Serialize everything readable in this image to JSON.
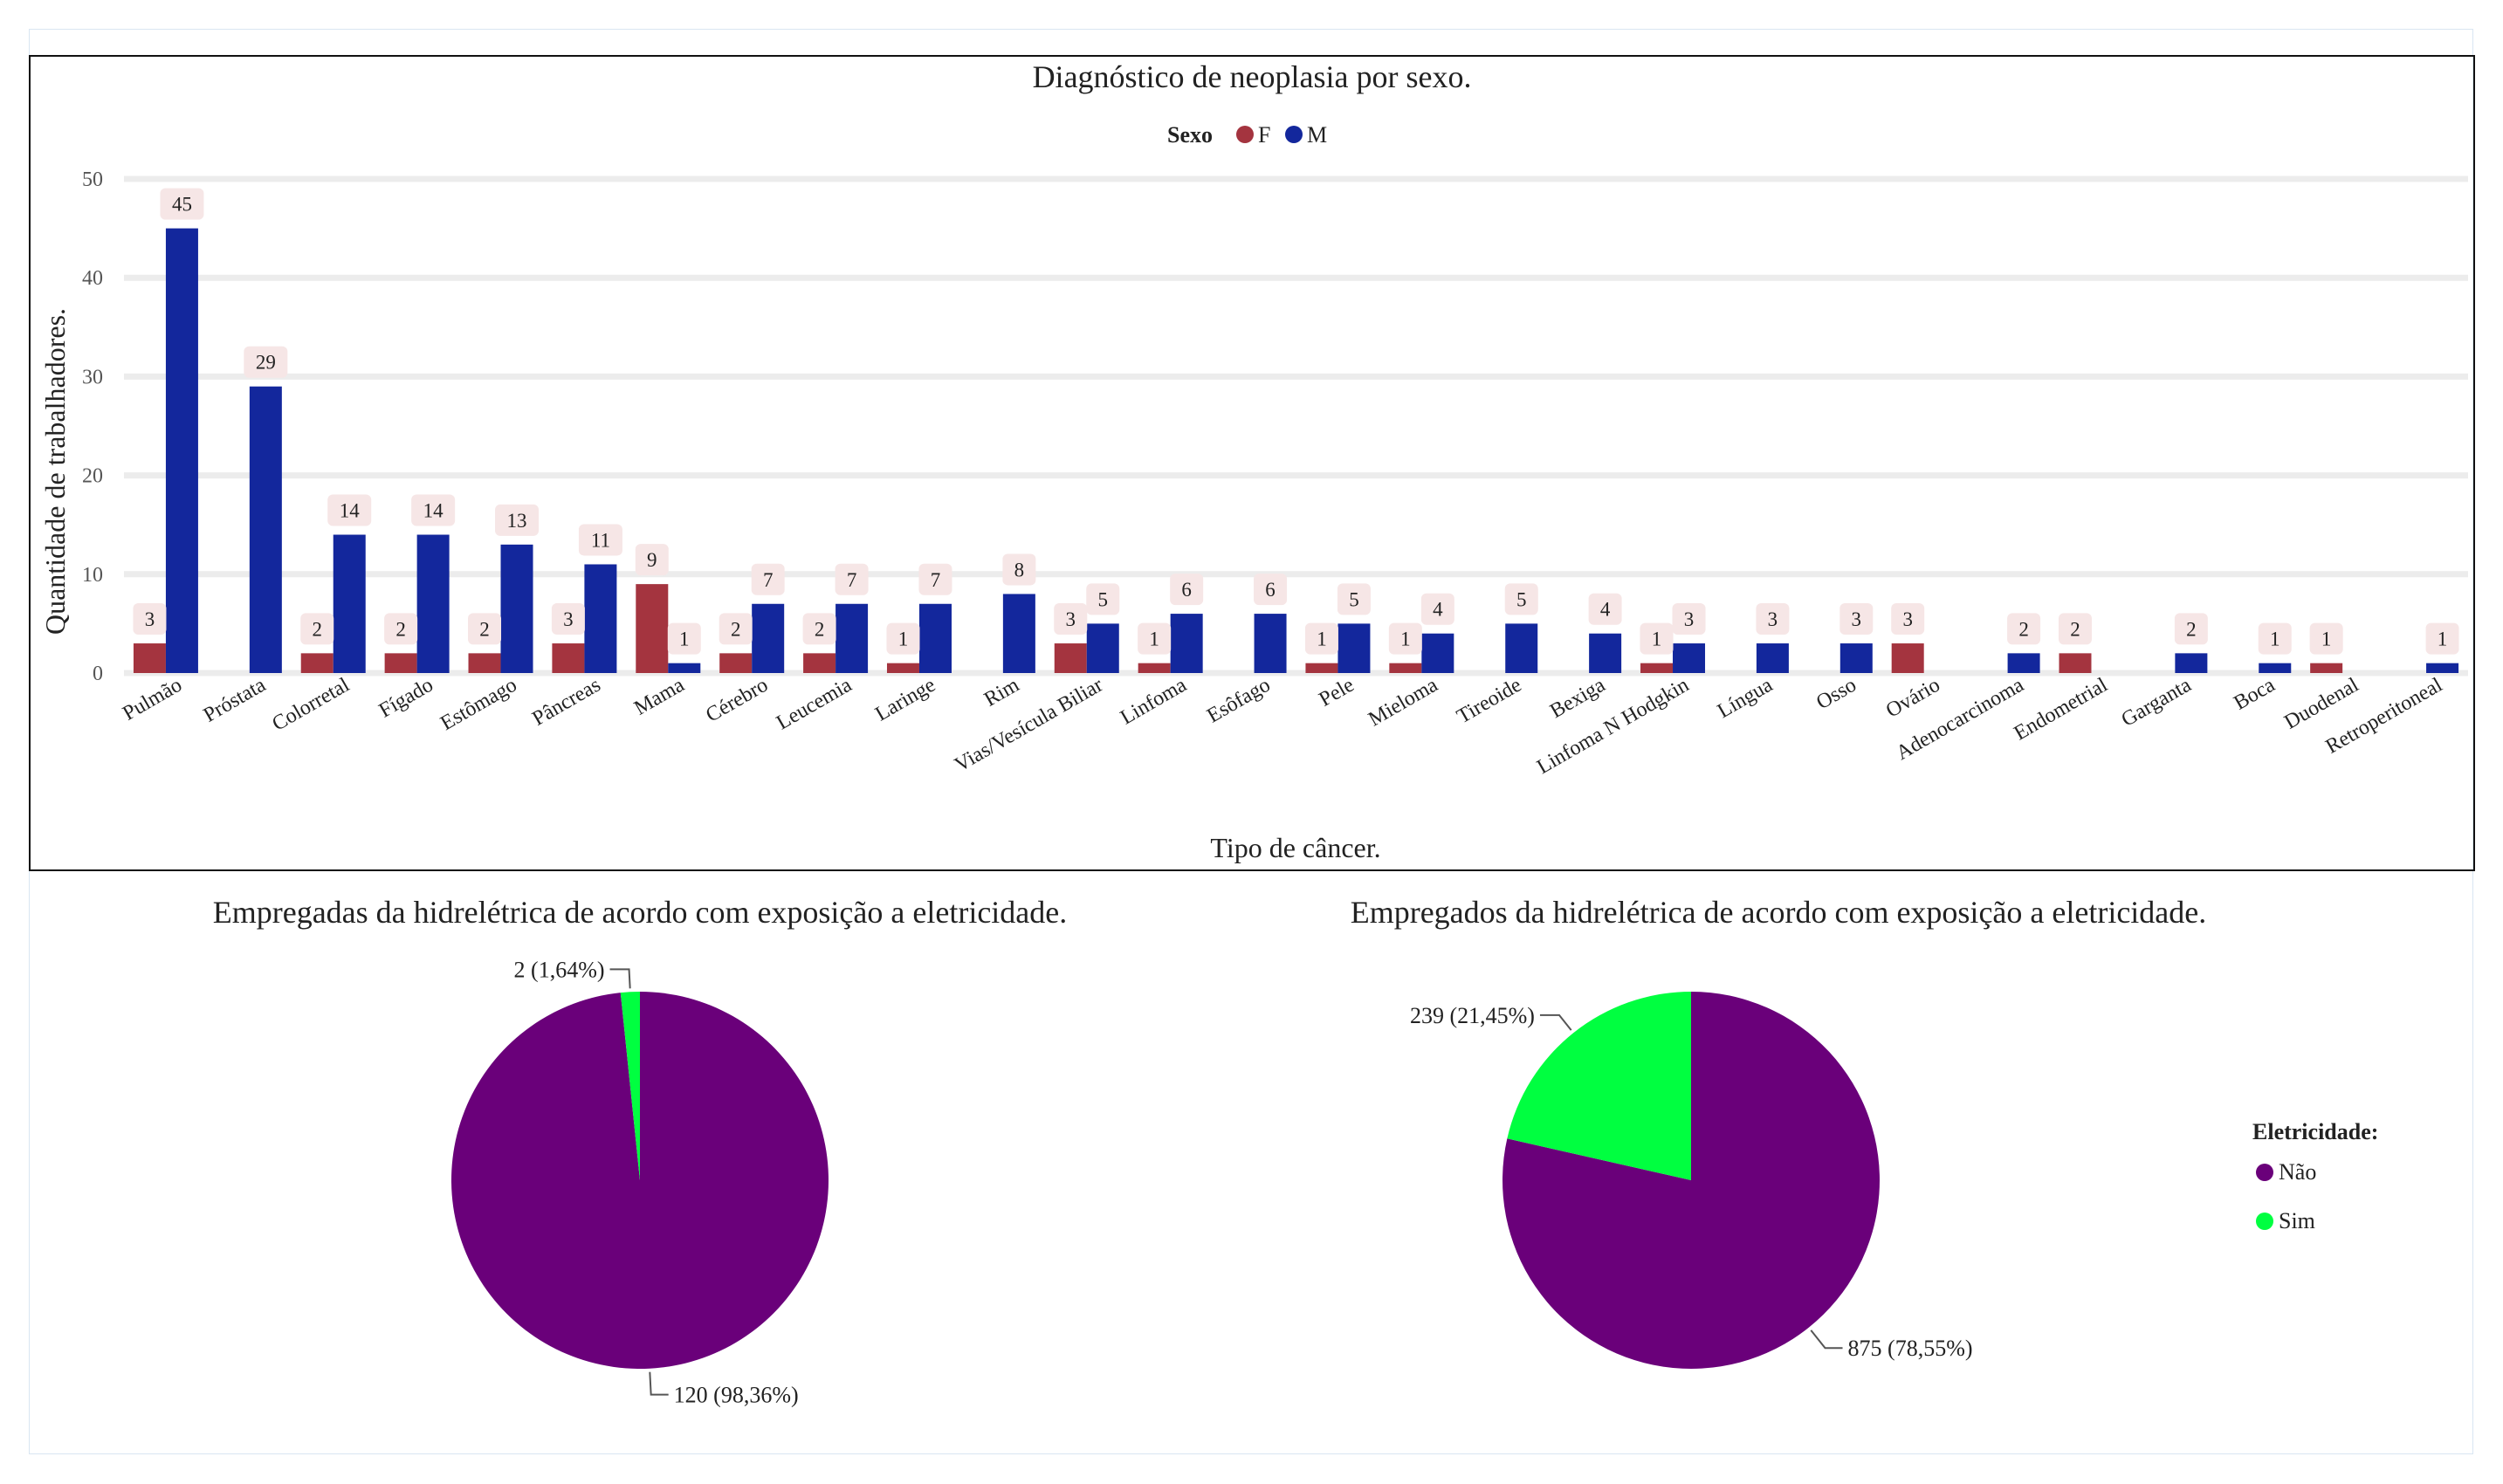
{
  "chart_data": [
    {
      "type": "bar",
      "title": "Diagnóstico de neoplasia por sexo.",
      "xlabel": "Tipo de câncer.",
      "ylabel": "Quantidade de trabalhadores.",
      "ylim": [
        0,
        50
      ],
      "yticks": [
        0,
        10,
        20,
        30,
        40,
        50
      ],
      "grid": true,
      "legend": {
        "title": "Sexo",
        "placement": "top-center"
      },
      "categories": [
        "Pulmão",
        "Próstata",
        "Colorretal",
        "Fígado",
        "Estômago",
        "Pâncreas",
        "Mama",
        "Cérebro",
        "Leucemia",
        "Laringe",
        "Rim",
        "Vias/Vesícula Biliar",
        "Linfoma",
        "Esôfago",
        "Pele",
        "Mieloma",
        "Tireoide",
        "Bexiga",
        "Linfoma N Hodgkin",
        "Língua",
        "Osso",
        "Ovário",
        "Adenocarcinoma",
        "Endometrial",
        "Garganta",
        "Boca",
        "Duodenal",
        "Retroperitoneal"
      ],
      "series": [
        {
          "name": "F",
          "color": "#a4343f",
          "values": [
            3,
            null,
            2,
            2,
            2,
            3,
            9,
            2,
            2,
            1,
            null,
            3,
            1,
            null,
            1,
            1,
            null,
            null,
            1,
            null,
            null,
            3,
            null,
            2,
            null,
            null,
            1,
            null
          ]
        },
        {
          "name": "M",
          "color": "#13279c",
          "values": [
            45,
            29,
            14,
            14,
            13,
            11,
            1,
            7,
            7,
            7,
            8,
            5,
            6,
            6,
            5,
            4,
            5,
            4,
            3,
            3,
            3,
            null,
            2,
            null,
            2,
            1,
            null,
            1
          ]
        }
      ]
    },
    {
      "type": "pie",
      "title": "Empregadas da hidrelétrica de acordo com exposição a eletricidade.",
      "slices": [
        {
          "name": "Não",
          "value": 120,
          "label": "120 (98,36%)",
          "color": "#6a007a"
        },
        {
          "name": "Sim",
          "value": 2,
          "label": "2 (1,64%)",
          "color": "#00ff40"
        }
      ]
    },
    {
      "type": "pie",
      "title": "Empregados da hidrelétrica de acordo com exposição a eletricidade.",
      "slices": [
        {
          "name": "Não",
          "value": 875,
          "label": "875 (78,55%)",
          "color": "#6a007a"
        },
        {
          "name": "Sim",
          "value": 239,
          "label": "239 (21,45%)",
          "color": "#00ff40"
        }
      ],
      "legend": {
        "title": "Eletricidade:",
        "placement": "right"
      }
    }
  ]
}
